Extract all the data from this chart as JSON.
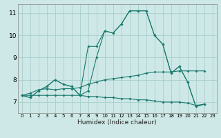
{
  "xlabel": "Humidex (Indice chaleur)",
  "xlim": [
    -0.5,
    23.5
  ],
  "ylim": [
    6.5,
    11.4
  ],
  "yticks": [
    7,
    8,
    9,
    10,
    11
  ],
  "xticks": [
    0,
    1,
    2,
    3,
    4,
    5,
    6,
    7,
    8,
    9,
    10,
    11,
    12,
    13,
    14,
    15,
    16,
    17,
    18,
    19,
    20,
    21,
    22,
    23
  ],
  "background_color": "#cde8e6",
  "grid_color": "#aacfcd",
  "line_color": "#1a7a6e",
  "series1_x": [
    0,
    1,
    2,
    3,
    4,
    5,
    6,
    7,
    8,
    9,
    10,
    11,
    12,
    13,
    14,
    15,
    16,
    17,
    18,
    19,
    20,
    21,
    22
  ],
  "series1_y": [
    7.3,
    7.2,
    7.5,
    7.7,
    8.0,
    7.8,
    7.7,
    7.3,
    9.5,
    9.5,
    10.2,
    10.1,
    10.5,
    11.1,
    11.1,
    11.1,
    10.0,
    9.6,
    8.3,
    8.6,
    7.9,
    6.8,
    6.9
  ],
  "series2_x": [
    0,
    1,
    2,
    3,
    4,
    5,
    6,
    7,
    8,
    9,
    10,
    11,
    12,
    13,
    14,
    15,
    16,
    17,
    18,
    19,
    20,
    21,
    22
  ],
  "series2_y": [
    7.3,
    7.2,
    7.5,
    7.7,
    8.0,
    7.8,
    7.7,
    7.3,
    7.5,
    9.0,
    10.2,
    10.1,
    10.5,
    11.1,
    11.1,
    11.1,
    10.0,
    9.6,
    8.3,
    8.6,
    7.9,
    6.8,
    6.9
  ],
  "series3_x": [
    0,
    1,
    2,
    3,
    4,
    5,
    6,
    7,
    8,
    9,
    10,
    11,
    12,
    13,
    14,
    15,
    16,
    17,
    18,
    19,
    20,
    21,
    22
  ],
  "series3_y": [
    7.3,
    7.4,
    7.55,
    7.6,
    7.55,
    7.6,
    7.6,
    7.65,
    7.8,
    7.9,
    8.0,
    8.05,
    8.1,
    8.15,
    8.2,
    8.3,
    8.35,
    8.35,
    8.35,
    8.4,
    8.4,
    8.4,
    8.4
  ],
  "series4_x": [
    0,
    1,
    2,
    3,
    4,
    5,
    6,
    7,
    8,
    9,
    10,
    11,
    12,
    13,
    14,
    15,
    16,
    17,
    18,
    19,
    20,
    21,
    22
  ],
  "series4_y": [
    7.3,
    7.3,
    7.3,
    7.3,
    7.3,
    7.3,
    7.3,
    7.3,
    7.25,
    7.25,
    7.2,
    7.2,
    7.15,
    7.15,
    7.1,
    7.1,
    7.05,
    7.0,
    7.0,
    7.0,
    6.95,
    6.85,
    6.9
  ]
}
